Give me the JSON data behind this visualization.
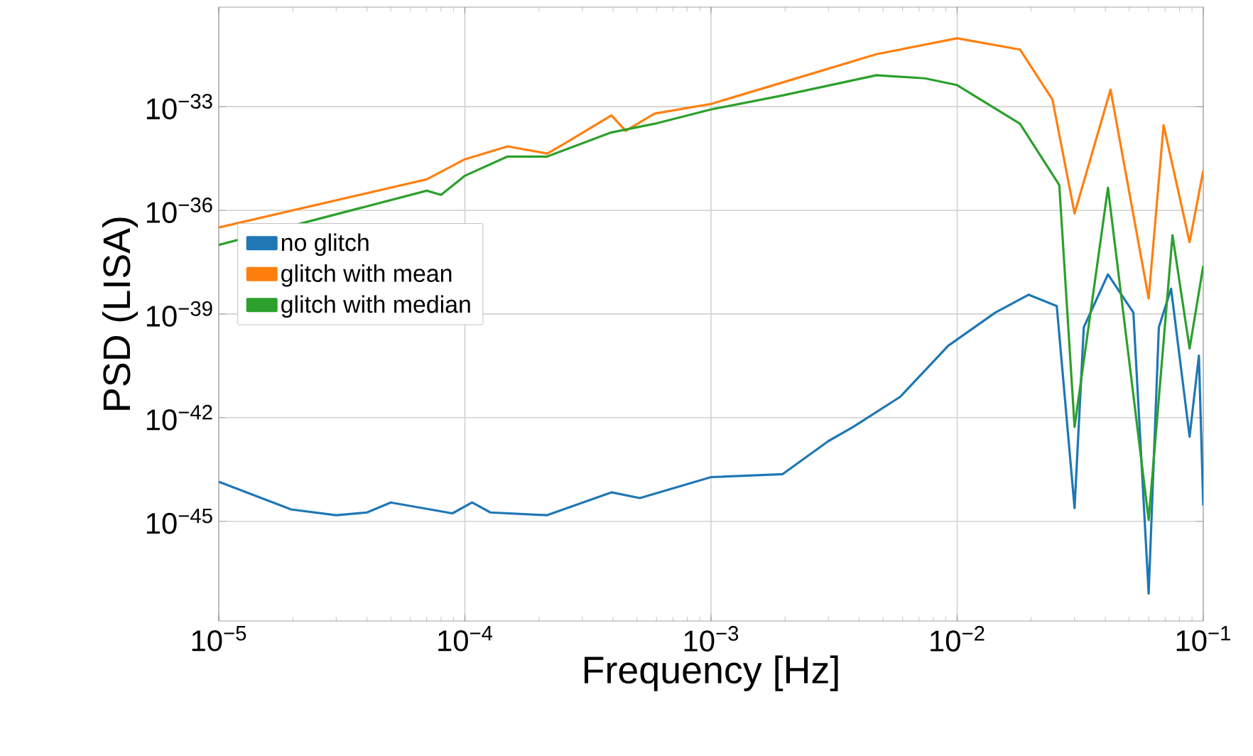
{
  "chart_data": {
    "type": "line",
    "xlabel": "Frequency [Hz]",
    "ylabel": "PSD (LISA)",
    "log": "xy",
    "grid": true,
    "legend": "left",
    "marker": "none",
    "line_style": "solid",
    "xlim": [
      1e-05,
      0.1
    ],
    "ylim": [
      1.3e-48,
      7.6e-31
    ],
    "xticks": [
      {
        "value": 1e-05,
        "label": "10$^{−5}$"
      },
      {
        "value": 0.0001,
        "label": "10$^{−4}$"
      },
      {
        "value": 0.001,
        "label": "10$^{−3}$"
      },
      {
        "value": 0.01,
        "label": "10$^{−2}$"
      },
      {
        "value": 0.1,
        "label": "10$^{−1}$"
      }
    ],
    "yticks": [
      {
        "value": 1e-45,
        "label": "10$^{−45}$"
      },
      {
        "value": 1e-42,
        "label": "10$^{−42}$"
      },
      {
        "value": 1e-39,
        "label": "10$^{−39}$"
      },
      {
        "value": 1e-36,
        "label": "10$^{−36}$"
      },
      {
        "value": 1e-33,
        "label": "10$^{−33}$"
      }
    ],
    "series": [
      {
        "name": "no glitch",
        "color": "#1f77b4",
        "x": [
          1e-05,
          1.97e-05,
          3e-05,
          4e-05,
          5e-05,
          8.9e-05,
          0.000107,
          0.000127,
          0.000216,
          0.000394,
          0.000514,
          0.001,
          0.00195,
          0.003,
          0.00378,
          0.00587,
          0.0092,
          0.0143,
          0.0195,
          0.0254,
          0.03,
          0.0327,
          0.041,
          0.052,
          0.06,
          0.066,
          0.074,
          0.088,
          0.096,
          0.1
        ],
        "values": [
          1.4e-44,
          2.2e-45,
          1.5e-45,
          1.8e-45,
          3.5e-45,
          1.7e-45,
          3.5e-45,
          1.8e-45,
          1.5e-45,
          6.9e-45,
          4.7e-45,
          1.9e-44,
          2.3e-44,
          2.1e-43,
          5.4e-43,
          4e-42,
          1.2e-40,
          1.1e-39,
          3.6e-39,
          1.7e-39,
          2.4e-45,
          4.1e-40,
          1.4e-38,
          1.1e-39,
          8.1e-48,
          4.1e-40,
          5.4e-39,
          2.8e-43,
          6.2e-41,
          2.9e-45
        ]
      },
      {
        "name": "glitch with mean",
        "color": "#ff7f0e",
        "x": [
          1e-05,
          7e-05,
          0.0001,
          0.000149,
          0.000216,
          0.000254,
          0.000394,
          0.00045,
          0.00059,
          0.001,
          0.00195,
          0.0047,
          0.01,
          0.018,
          0.0244,
          0.03,
          0.042,
          0.06,
          0.069,
          0.088,
          0.1
        ],
        "values": [
          3.2e-37,
          7.9e-36,
          3e-35,
          7.1e-35,
          4.4e-35,
          8.5e-35,
          5.6e-34,
          2e-34,
          6.3e-34,
          1.2e-33,
          5e-33,
          3.3e-32,
          9.5e-32,
          4.5e-32,
          1.6e-33,
          8.1e-37,
          3.1e-33,
          2.8e-39,
          2.9e-34,
          1.2e-37,
          1.4e-35
        ]
      },
      {
        "name": "glitch with median",
        "color": "#2ca02c",
        "x": [
          1e-05,
          7e-05,
          8e-05,
          0.0001,
          0.000149,
          0.000216,
          0.000394,
          0.00059,
          0.001,
          0.00195,
          0.0047,
          0.0074,
          0.01,
          0.018,
          0.026,
          0.03,
          0.041,
          0.06,
          0.075,
          0.088,
          0.1
        ],
        "values": [
          1e-37,
          3.7e-36,
          2.8e-36,
          1e-35,
          3.6e-35,
          3.6e-35,
          1.8e-34,
          3.2e-34,
          8.3e-34,
          2.1e-33,
          8.1e-33,
          6.6e-33,
          4.2e-33,
          3.2e-34,
          5.4e-36,
          5.4e-43,
          4.5e-36,
          1.1e-45,
          1.9e-37,
          1e-40,
          2.5e-38
        ]
      }
    ]
  }
}
